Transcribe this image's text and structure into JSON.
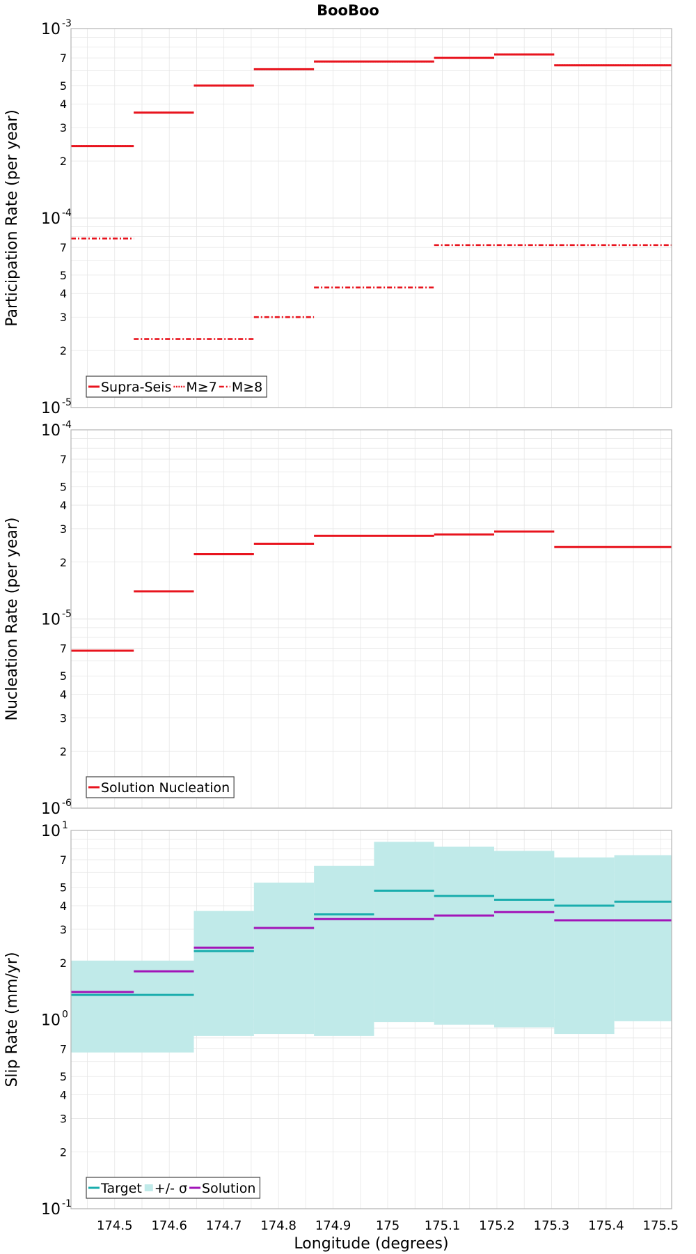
{
  "figure_title": "BooBoo",
  "chart_data": [
    {
      "type": "step",
      "id": "participation",
      "title": "BooBoo",
      "xlabel": "",
      "ylabel": "Participation Rate (per year)",
      "yscale": "log",
      "ylim": [
        1e-05,
        0.001
      ],
      "xlim": [
        174.42,
        175.52
      ],
      "series": [
        {
          "name": "Supra-Seis",
          "style": "solid",
          "color": "#e8141e",
          "segments": [
            [
              174.42,
              174.535,
              0.00024
            ],
            [
              174.535,
              174.645,
              0.00036
            ],
            [
              174.645,
              174.755,
              0.0005
            ],
            [
              174.755,
              174.865,
              0.00061
            ],
            [
              174.865,
              175.085,
              0.00067
            ],
            [
              175.085,
              175.195,
              0.0007
            ],
            [
              175.195,
              175.305,
              0.00073
            ],
            [
              175.305,
              175.52,
              0.00064
            ]
          ]
        },
        {
          "name": "M≥7",
          "style": "dotted",
          "color": "#e8141e",
          "segments": [
            [
              174.42,
              174.535,
              0.00024
            ],
            [
              174.535,
              174.645,
              0.00036
            ],
            [
              174.645,
              174.755,
              0.0005
            ],
            [
              174.755,
              174.865,
              0.00061
            ],
            [
              174.865,
              175.085,
              0.00067
            ],
            [
              175.085,
              175.195,
              0.0007
            ],
            [
              175.195,
              175.305,
              0.00073
            ],
            [
              175.305,
              175.52,
              0.00064
            ]
          ]
        },
        {
          "name": "M≥8",
          "style": "dashdot",
          "color": "#e8141e",
          "segments": [
            [
              174.42,
              174.535,
              7.8e-05
            ],
            [
              174.535,
              174.755,
              2.3e-05
            ],
            [
              174.755,
              174.865,
              3e-05
            ],
            [
              174.865,
              175.085,
              4.3e-05
            ],
            [
              175.085,
              175.52,
              7.2e-05
            ]
          ]
        }
      ],
      "legend": [
        {
          "label": "Supra-Seis",
          "style": "solid"
        },
        {
          "label": "M≥7",
          "style": "dotted"
        },
        {
          "label": "M≥8",
          "style": "dashdot"
        }
      ],
      "legend_position": "bottom-left"
    },
    {
      "type": "step",
      "id": "nucleation",
      "title": "",
      "xlabel": "",
      "ylabel": "Nucleation Rate (per year)",
      "yscale": "log",
      "ylim": [
        1e-06,
        0.0001
      ],
      "xlim": [
        174.42,
        175.52
      ],
      "series": [
        {
          "name": "Solution Nucleation",
          "style": "solid",
          "color": "#e8141e",
          "segments": [
            [
              174.42,
              174.535,
              6.8e-06
            ],
            [
              174.535,
              174.645,
              1.4e-05
            ],
            [
              174.645,
              174.755,
              2.2e-05
            ],
            [
              174.755,
              174.865,
              2.5e-05
            ],
            [
              174.865,
              175.085,
              2.75e-05
            ],
            [
              175.085,
              175.195,
              2.8e-05
            ],
            [
              175.195,
              175.305,
              2.9e-05
            ],
            [
              175.305,
              175.52,
              2.4e-05
            ]
          ]
        }
      ],
      "legend": [
        {
          "label": "Solution Nucleation",
          "style": "solid"
        }
      ],
      "legend_position": "bottom-left"
    },
    {
      "type": "step",
      "id": "slip",
      "title": "",
      "xlabel": "Longitude (degrees)",
      "ylabel": "Slip Rate (mm/yr)",
      "yscale": "log",
      "ylim": [
        0.1,
        10
      ],
      "xlim": [
        174.42,
        175.52
      ],
      "band": {
        "name": "+/- σ",
        "color": "#c0eae9",
        "segments": [
          [
            174.42,
            174.645,
            0.67,
            2.05
          ],
          [
            174.645,
            174.755,
            0.82,
            3.75
          ],
          [
            174.755,
            174.865,
            0.84,
            5.3
          ],
          [
            174.865,
            174.975,
            0.82,
            6.5
          ],
          [
            174.975,
            175.085,
            0.97,
            8.7
          ],
          [
            175.085,
            175.195,
            0.94,
            8.2
          ],
          [
            175.195,
            175.305,
            0.91,
            7.8
          ],
          [
            175.305,
            175.415,
            0.84,
            7.2
          ],
          [
            175.415,
            175.52,
            0.98,
            7.4
          ]
        ]
      },
      "series": [
        {
          "name": "Target",
          "style": "solid",
          "color": "#1aadad",
          "segments": [
            [
              174.42,
              174.645,
              1.35
            ],
            [
              174.645,
              174.755,
              2.3
            ],
            [
              174.755,
              174.865,
              3.05
            ],
            [
              174.865,
              174.975,
              3.6
            ],
            [
              174.975,
              175.085,
              4.8
            ],
            [
              175.085,
              175.195,
              4.5
            ],
            [
              175.195,
              175.305,
              4.3
            ],
            [
              175.305,
              175.415,
              4.0
            ],
            [
              175.415,
              175.52,
              4.2
            ]
          ]
        },
        {
          "name": "Solution",
          "style": "solid",
          "color": "#a215b8",
          "segments": [
            [
              174.42,
              174.535,
              1.4
            ],
            [
              174.535,
              174.645,
              1.8
            ],
            [
              174.645,
              174.755,
              2.4
            ],
            [
              174.755,
              174.865,
              3.05
            ],
            [
              174.865,
              175.085,
              3.4
            ],
            [
              175.085,
              175.195,
              3.55
            ],
            [
              175.195,
              175.305,
              3.7
            ],
            [
              175.305,
              175.52,
              3.35
            ]
          ]
        }
      ],
      "legend": [
        {
          "label": "Target",
          "style": "solid"
        },
        {
          "label": "+/- σ",
          "style": "band"
        },
        {
          "label": "Solution",
          "style": "solid"
        }
      ],
      "legend_position": "bottom-left"
    }
  ],
  "x_ticks": [
    "174.5",
    "174.6",
    "174.7",
    "174.8",
    "174.9",
    "175",
    "175.1",
    "175.2",
    "175.3",
    "175.4",
    "175.5"
  ],
  "y_minor_tick_labels": [
    "2",
    "3",
    "4",
    "5",
    "7"
  ],
  "colors": {
    "red": "#e8141e",
    "teal": "#1aadad",
    "purple": "#a215b8",
    "band": "#c0eae9",
    "grid": "#e6e6e6",
    "frame": "#b4b4b4"
  }
}
